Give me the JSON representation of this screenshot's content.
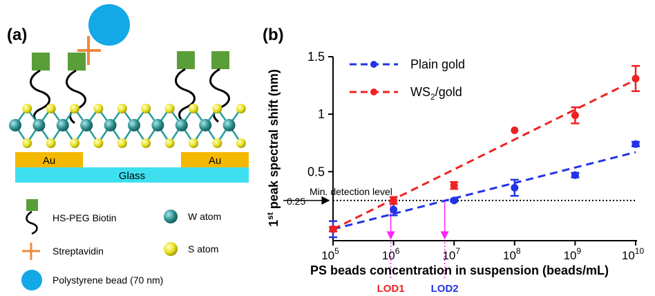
{
  "panel_a": {
    "label": "(a)",
    "substrate": {
      "au_left": "Au",
      "au_right": "Au",
      "glass": "Glass"
    },
    "legend": [
      {
        "icon": "green-square-icon",
        "label": "HS-PEG Biotin"
      },
      {
        "icon": "orange-cross-icon",
        "label": "Streptavidin"
      },
      {
        "icon": "blue-circle-icon",
        "label": "Polystyrene bead (70 nm)"
      },
      {
        "icon": "teal-sphere-icon",
        "label": "W atom"
      },
      {
        "icon": "yellow-sphere-icon",
        "label": "S atom"
      }
    ],
    "colors": {
      "biotin": "#5a9e3a",
      "streptavidin": "#f08a3c",
      "bead": "#13a8e6",
      "w_atom": "#2a8c8c",
      "s_atom": "#e8e020",
      "gold": "#f5b800",
      "glass": "#3ee0f0"
    }
  },
  "chart_data": {
    "type": "scatter",
    "panel_label": "(b)",
    "xlabel": "PS beads concentration in suspension (beads/mL)",
    "ylabel": "1st peak spectral shift (nm)",
    "ylabel_main": "1",
    "ylabel_sup": "st",
    "ylabel_rest": " peak spectral shift (nm)",
    "x_scale": "log",
    "xlim": [
      100000,
      10000000000
    ],
    "ylim": [
      -0.1,
      1.5
    ],
    "y_ticks": [
      {
        "value": 0.5,
        "label": "0.5"
      },
      {
        "value": 1,
        "label": "1"
      },
      {
        "value": 1.5,
        "label": "1.5"
      }
    ],
    "x_ticks": [
      {
        "value": 100000,
        "base": "10",
        "exp": "5"
      },
      {
        "value": 1000000,
        "base": "10",
        "exp": "6"
      },
      {
        "value": 10000000,
        "base": "10",
        "exp": "7"
      },
      {
        "value": 100000000,
        "base": "10",
        "exp": "8"
      },
      {
        "value": 1000000000,
        "base": "10",
        "exp": "9"
      },
      {
        "value": 10000000000,
        "base": "10",
        "exp": "10"
      }
    ],
    "series": [
      {
        "name": "Plain gold",
        "color": "#2233e6",
        "x": [
          100000,
          1000000,
          10000000,
          100000000,
          1000000000,
          10000000000
        ],
        "y": [
          0.0,
          0.17,
          0.25,
          0.36,
          0.47,
          0.74
        ],
        "err": [
          0.07,
          0.05,
          0.01,
          0.07,
          0.02,
          0.02
        ],
        "fit": {
          "x": [
            100000,
            10000000000
          ],
          "y": [
            0.0,
            0.67
          ]
        }
      },
      {
        "name": "WS2/gold",
        "name_main": "WS",
        "name_sub": "2",
        "name_rest": "/gold",
        "color": "#ee2222",
        "x": [
          100000,
          1000000,
          10000000,
          100000000,
          1000000000,
          10000000000
        ],
        "y": [
          0.0,
          0.25,
          0.38,
          0.86,
          0.99,
          1.31
        ],
        "err": [
          0.02,
          0.03,
          0.03,
          0.0,
          0.07,
          0.11
        ],
        "fit": {
          "x": [
            100000,
            10000000000
          ],
          "y": [
            0.0,
            1.3
          ]
        }
      }
    ],
    "annotations": {
      "threshold_value": 0.25,
      "threshold_label": "0.25",
      "threshold_text": "Min. detection level",
      "lod1": {
        "label": "LOD1",
        "x": 900000,
        "color": "#ee2222"
      },
      "lod2": {
        "label": "LOD2",
        "x": 7000000,
        "color": "#2233e6"
      },
      "arrow_color": "#ff22ff"
    },
    "legend_position": "top-left",
    "grid": false
  }
}
